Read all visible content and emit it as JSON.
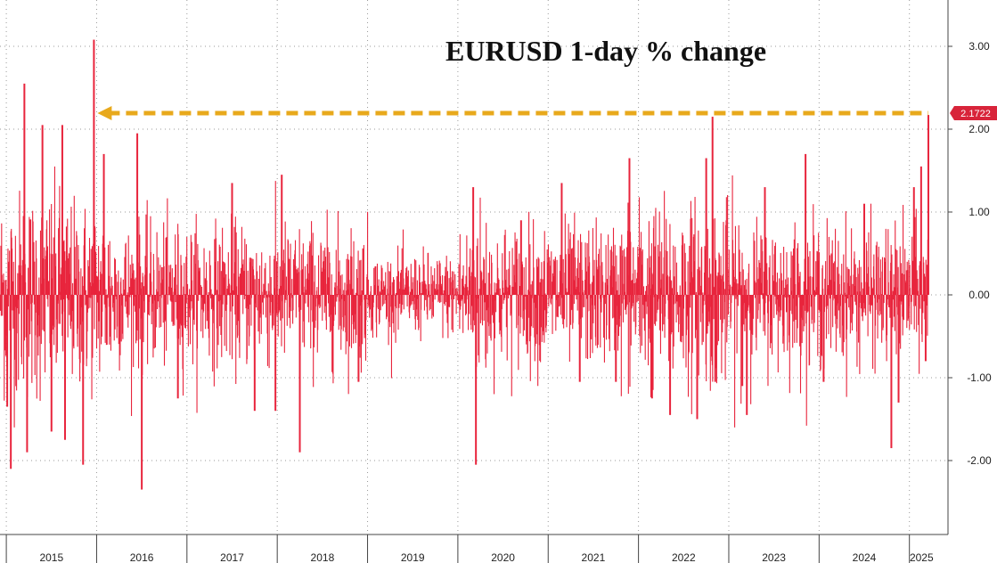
{
  "chart_data": {
    "type": "bar",
    "title": "EURUSD 1-day % change",
    "xlabel": "",
    "ylabel": "",
    "ylim": [
      -2.6,
      3.4
    ],
    "y_ticks": [
      "3.00",
      "2.00",
      "1.00",
      "0.00",
      "-1.00",
      "-2.00"
    ],
    "y_tick_values": [
      3,
      2,
      1,
      0,
      -1,
      -2
    ],
    "x_ticks": [
      "2015",
      "2016",
      "2017",
      "2018",
      "2019",
      "2020",
      "2021",
      "2022",
      "2023",
      "2024",
      "2025"
    ],
    "x_range_years": [
      2014.93,
      2025.23
    ],
    "series": [
      {
        "color": "#e8243c",
        "spikes": [
          {
            "x": 2015.01,
            "y": -1.35
          },
          {
            "x": 2015.05,
            "y": -2.1
          },
          {
            "x": 2015.2,
            "y": 2.55
          },
          {
            "x": 2015.23,
            "y": -1.9
          },
          {
            "x": 2015.4,
            "y": 2.05
          },
          {
            "x": 2015.5,
            "y": -1.65
          },
          {
            "x": 2015.62,
            "y": 2.05
          },
          {
            "x": 2015.65,
            "y": -1.75
          },
          {
            "x": 2015.85,
            "y": -2.05
          },
          {
            "x": 2015.97,
            "y": 3.08
          },
          {
            "x": 2016.08,
            "y": 1.7
          },
          {
            "x": 2016.45,
            "y": 1.95
          },
          {
            "x": 2016.5,
            "y": -2.35
          },
          {
            "x": 2016.9,
            "y": -1.25
          },
          {
            "x": 2017.5,
            "y": 1.35
          },
          {
            "x": 2017.75,
            "y": -1.4
          },
          {
            "x": 2017.98,
            "y": -1.4
          },
          {
            "x": 2018.05,
            "y": 1.45
          },
          {
            "x": 2018.25,
            "y": -1.9
          },
          {
            "x": 2018.9,
            "y": -1.05
          },
          {
            "x": 2020.17,
            "y": 1.3
          },
          {
            "x": 2020.2,
            "y": -2.05
          },
          {
            "x": 2020.7,
            "y": 0.9
          },
          {
            "x": 2021.15,
            "y": 1.35
          },
          {
            "x": 2021.35,
            "y": -1.05
          },
          {
            "x": 2021.75,
            "y": -1.05
          },
          {
            "x": 2021.9,
            "y": 1.65
          },
          {
            "x": 2022.15,
            "y": -1.25
          },
          {
            "x": 2022.35,
            "y": -1.45
          },
          {
            "x": 2022.65,
            "y": -1.5
          },
          {
            "x": 2022.75,
            "y": 1.65
          },
          {
            "x": 2022.82,
            "y": 2.15
          },
          {
            "x": 2022.85,
            "y": -1.05
          },
          {
            "x": 2023.15,
            "y": -1.1
          },
          {
            "x": 2023.2,
            "y": -1.45
          },
          {
            "x": 2023.4,
            "y": 1.3
          },
          {
            "x": 2023.85,
            "y": 1.7
          },
          {
            "x": 2024.05,
            "y": -1.05
          },
          {
            "x": 2024.5,
            "y": 1.1
          },
          {
            "x": 2024.8,
            "y": -1.85
          },
          {
            "x": 2024.88,
            "y": -1.3
          },
          {
            "x": 2025.05,
            "y": 1.3
          },
          {
            "x": 2025.13,
            "y": 1.55
          },
          {
            "x": 2025.18,
            "y": -0.8
          },
          {
            "x": 2025.21,
            "y": 2.1722
          }
        ]
      }
    ],
    "last_value_label": "2.1722",
    "reference_line": {
      "y": 2.1722,
      "x_from": 2015.97,
      "x_to": 2025.21,
      "color": "#e8a91c"
    },
    "grid": true
  }
}
